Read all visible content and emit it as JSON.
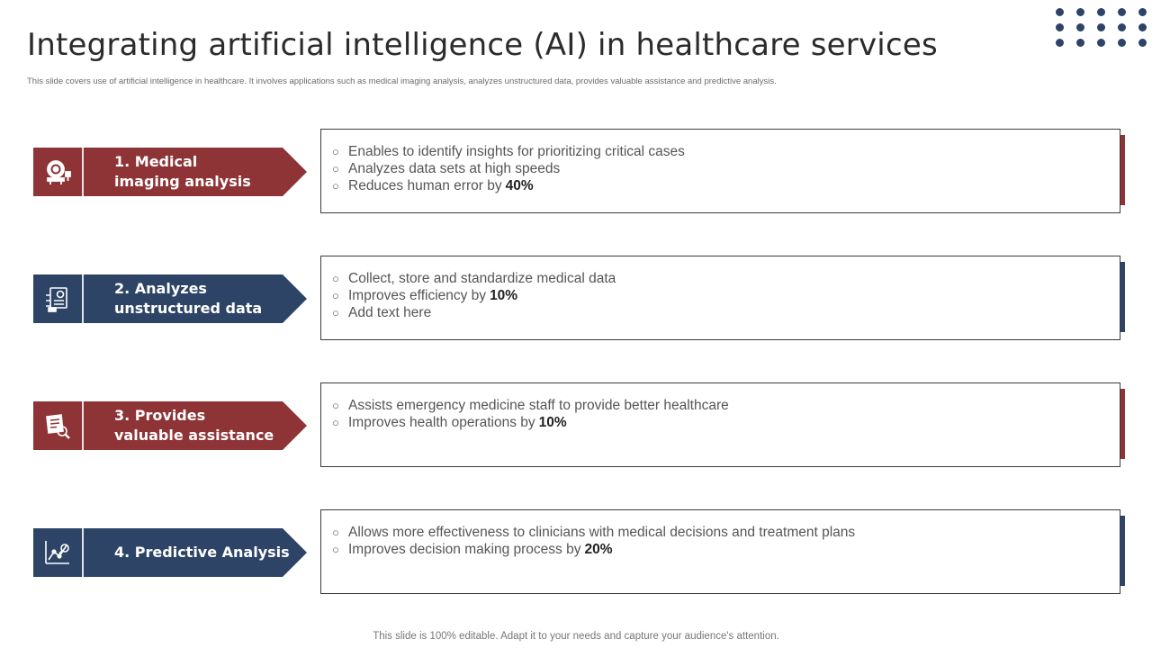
{
  "title": "Integrating artificial intelligence (AI) in healthcare services",
  "subtitle": "This slide covers use of artificial intelligence in healthcare. It involves  applications such as medical imaging  analysis, analyzes unstructured data, provides valuable assistance and predictive analysis.",
  "colors": {
    "red": "#8E3437",
    "blue": "#2D4466",
    "dots": "#2D4466"
  },
  "rows": [
    {
      "label": "1. Medical\nimaging analysis",
      "icon": "medical-scanner-icon",
      "color": "red",
      "bullets": [
        {
          "text": "Enables to identify insights for prioritizing critical cases",
          "highlight": ""
        },
        {
          "text": "Analyzes data sets at high speeds",
          "highlight": ""
        },
        {
          "text": "Reduces human error by",
          "highlight": "40%"
        }
      ]
    },
    {
      "label": "2. Analyzes\nunstructured data",
      "icon": "data-document-icon",
      "color": "blue",
      "bullets": [
        {
          "text": "Collect, store and standardize medical data",
          "highlight": ""
        },
        {
          "text": "Improves efficiency by",
          "highlight": "10%"
        },
        {
          "text": "Add text here",
          "highlight": ""
        }
      ]
    },
    {
      "label": "3. Provides\nvaluable assistance",
      "icon": "document-search-icon",
      "color": "red",
      "bullets": [
        {
          "text": "Assists emergency medicine staff to provide better healthcare",
          "highlight": ""
        },
        {
          "text": "Improves health operations  by",
          "highlight": "10%"
        }
      ]
    },
    {
      "label": "4. Predictive Analysis",
      "icon": "analytics-chart-icon",
      "color": "blue",
      "bullets": [
        {
          "text": "Allows more effectiveness to clinicians with medical decisions and treatment plans",
          "highlight": ""
        },
        {
          "text": "Improves decision making process by",
          "highlight": "20%"
        }
      ]
    }
  ],
  "bullet_marker": "○",
  "footer": "This slide is 100% editable. Adapt it to your needs and capture your audience's attention."
}
